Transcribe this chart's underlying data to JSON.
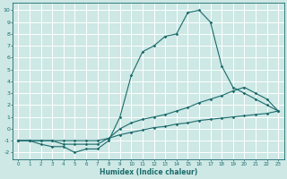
{
  "xlabel": "Humidex (Indice chaleur)",
  "bg_color": "#cde8e5",
  "grid_color": "#ffffff",
  "line_color": "#1a6b6b",
  "xlim": [
    -0.5,
    23.5
  ],
  "ylim": [
    -2.6,
    10.6
  ],
  "xticks": [
    0,
    1,
    2,
    3,
    4,
    5,
    6,
    7,
    8,
    9,
    10,
    11,
    12,
    13,
    14,
    15,
    16,
    17,
    18,
    19,
    20,
    21,
    22,
    23
  ],
  "yticks": [
    -2,
    -1,
    0,
    1,
    2,
    3,
    4,
    5,
    6,
    7,
    8,
    9,
    10
  ],
  "line1_x": [
    0,
    1,
    2,
    3,
    4,
    5,
    6,
    7,
    8,
    9,
    10,
    11,
    12,
    13,
    14,
    15,
    16,
    17,
    18,
    19,
    20,
    21,
    22,
    23
  ],
  "line1_y": [
    -1,
    -1,
    -1.3,
    -1.5,
    -1.5,
    -2,
    -1.7,
    -1.7,
    -1,
    1,
    4.5,
    6.5,
    7,
    7.8,
    8,
    9.8,
    10,
    9,
    5.3,
    3.5,
    3.0,
    2.5,
    2.0,
    1.5
  ],
  "line2_x": [
    0,
    1,
    2,
    3,
    4,
    5,
    6,
    7,
    8,
    9,
    10,
    11,
    12,
    13,
    14,
    15,
    16,
    17,
    18,
    19,
    20,
    21,
    22,
    23
  ],
  "line2_y": [
    -1,
    -1,
    -1,
    -1,
    -1.3,
    -1.3,
    -1.3,
    -1.3,
    -0.8,
    0,
    0.5,
    0.8,
    1.0,
    1.2,
    1.5,
    1.8,
    2.2,
    2.5,
    2.8,
    3.2,
    3.5,
    3.0,
    2.5,
    1.5
  ],
  "line3_x": [
    0,
    1,
    2,
    3,
    4,
    5,
    6,
    7,
    8,
    9,
    10,
    11,
    12,
    13,
    14,
    15,
    16,
    17,
    18,
    19,
    20,
    21,
    22,
    23
  ],
  "line3_y": [
    -1,
    -1,
    -1,
    -1,
    -1,
    -1,
    -1,
    -1,
    -0.8,
    -0.5,
    -0.3,
    -0.1,
    0.1,
    0.2,
    0.4,
    0.5,
    0.7,
    0.8,
    0.9,
    1.0,
    1.1,
    1.2,
    1.3,
    1.5
  ]
}
